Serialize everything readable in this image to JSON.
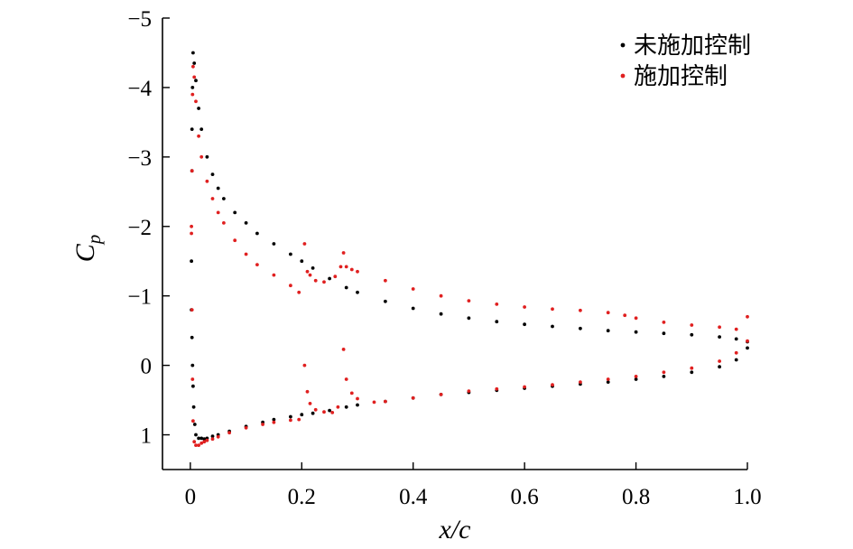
{
  "chart_data": {
    "type": "scatter",
    "title": "",
    "xlabel": "x/c",
    "ylabel_main": "C",
    "ylabel_sub": "p",
    "xlim": [
      -0.05,
      1.0
    ],
    "ylim": [
      1.5,
      -5
    ],
    "y_inverted": true,
    "grid": false,
    "legend_position": "top-right",
    "x_ticks": [
      {
        "value": 0,
        "label": "0"
      },
      {
        "value": 0.2,
        "label": "0.2"
      },
      {
        "value": 0.4,
        "label": "0.4"
      },
      {
        "value": 0.6,
        "label": "0.6"
      },
      {
        "value": 0.8,
        "label": "0.8"
      },
      {
        "value": 1.0,
        "label": "1.0"
      }
    ],
    "y_ticks": [
      {
        "value": -5,
        "label": "−5"
      },
      {
        "value": -4,
        "label": "−4"
      },
      {
        "value": -3,
        "label": "−3"
      },
      {
        "value": -2,
        "label": "−2"
      },
      {
        "value": -1,
        "label": "−1"
      },
      {
        "value": 0,
        "label": "0"
      },
      {
        "value": 1,
        "label": "1"
      }
    ],
    "series": [
      {
        "name": "未施加控制",
        "color": "#000000",
        "marker": "dot",
        "x": [
          0.002,
          0.003,
          0.003,
          0.004,
          0.005,
          0.007,
          0.01,
          0.015,
          0.02,
          0.03,
          0.04,
          0.05,
          0.06,
          0.08,
          0.1,
          0.12,
          0.15,
          0.18,
          0.2,
          0.22,
          0.25,
          0.28,
          0.3,
          0.35,
          0.4,
          0.45,
          0.5,
          0.55,
          0.6,
          0.65,
          0.7,
          0.75,
          0.8,
          0.85,
          0.9,
          0.95,
          0.98,
          1.0,
          0.002,
          0.003,
          0.004,
          0.005,
          0.006,
          0.008,
          0.01,
          0.015,
          0.02,
          0.025,
          0.03,
          0.04,
          0.05,
          0.07,
          0.1,
          0.13,
          0.15,
          0.18,
          0.2,
          0.22,
          0.25,
          0.28,
          0.3,
          0.35,
          0.4,
          0.45,
          0.5,
          0.55,
          0.6,
          0.65,
          0.7,
          0.75,
          0.8,
          0.85,
          0.9,
          0.95,
          0.98,
          1.0
        ],
        "y": [
          -1.5,
          -2.8,
          -3.4,
          -4.0,
          -4.5,
          -4.35,
          -4.1,
          -3.7,
          -3.4,
          -3.0,
          -2.75,
          -2.55,
          -2.4,
          -2.2,
          -2.05,
          -1.9,
          -1.75,
          -1.6,
          -1.5,
          -1.4,
          -1.25,
          -1.12,
          -1.05,
          -0.92,
          -0.82,
          -0.74,
          -0.68,
          -0.63,
          -0.59,
          -0.56,
          -0.53,
          -0.5,
          -0.48,
          -0.46,
          -0.44,
          -0.41,
          -0.38,
          -0.34,
          -0.8,
          -0.4,
          0.0,
          0.3,
          0.6,
          0.85,
          1.0,
          1.05,
          1.05,
          1.06,
          1.05,
          1.02,
          1.0,
          0.95,
          0.88,
          0.82,
          0.78,
          0.74,
          0.71,
          0.69,
          0.65,
          0.6,
          0.57,
          0.52,
          0.47,
          0.42,
          0.39,
          0.36,
          0.33,
          0.3,
          0.27,
          0.24,
          0.2,
          0.16,
          0.1,
          0.02,
          -0.08,
          -0.25
        ]
      },
      {
        "name": "施加控制",
        "color": "#e02020",
        "marker": "dot",
        "x": [
          0.002,
          0.003,
          0.004,
          0.005,
          0.007,
          0.01,
          0.015,
          0.02,
          0.03,
          0.04,
          0.05,
          0.06,
          0.08,
          0.1,
          0.12,
          0.15,
          0.18,
          0.195,
          0.205,
          0.21,
          0.215,
          0.225,
          0.24,
          0.26,
          0.27,
          0.275,
          0.28,
          0.29,
          0.3,
          0.35,
          0.4,
          0.45,
          0.5,
          0.55,
          0.6,
          0.65,
          0.7,
          0.75,
          0.78,
          0.8,
          0.85,
          0.9,
          0.95,
          0.98,
          1.0,
          0.002,
          0.003,
          0.004,
          0.005,
          0.007,
          0.01,
          0.015,
          0.02,
          0.025,
          0.03,
          0.04,
          0.05,
          0.07,
          0.1,
          0.13,
          0.15,
          0.18,
          0.195,
          0.205,
          0.21,
          0.215,
          0.225,
          0.24,
          0.255,
          0.265,
          0.275,
          0.28,
          0.29,
          0.3,
          0.33,
          0.35,
          0.4,
          0.45,
          0.5,
          0.55,
          0.6,
          0.65,
          0.7,
          0.75,
          0.8,
          0.85,
          0.9,
          0.95,
          0.98,
          1.0
        ],
        "y": [
          -1.9,
          -2.8,
          -3.9,
          -4.3,
          -4.15,
          -3.8,
          -3.3,
          -3.0,
          -2.65,
          -2.4,
          -2.2,
          -2.05,
          -1.8,
          -1.6,
          -1.45,
          -1.3,
          -1.15,
          -1.05,
          -1.75,
          -1.35,
          -1.3,
          -1.22,
          -1.2,
          -1.28,
          -1.42,
          -1.62,
          -1.42,
          -1.38,
          -1.35,
          -1.22,
          -1.1,
          -1.0,
          -0.93,
          -0.88,
          -0.84,
          -0.81,
          -0.79,
          -0.76,
          -0.72,
          -0.68,
          -0.62,
          -0.58,
          -0.55,
          -0.52,
          -0.7,
          -2.0,
          -0.8,
          0.2,
          0.8,
          1.1,
          1.15,
          1.15,
          1.12,
          1.1,
          1.08,
          1.06,
          1.03,
          0.97,
          0.9,
          0.85,
          0.82,
          0.79,
          0.78,
          0.0,
          0.38,
          0.55,
          0.64,
          0.67,
          0.68,
          0.6,
          -0.23,
          0.2,
          0.4,
          0.48,
          0.53,
          0.52,
          0.47,
          0.42,
          0.37,
          0.34,
          0.31,
          0.28,
          0.24,
          0.2,
          0.16,
          0.1,
          0.04,
          -0.06,
          -0.18,
          -0.35
        ]
      }
    ]
  }
}
